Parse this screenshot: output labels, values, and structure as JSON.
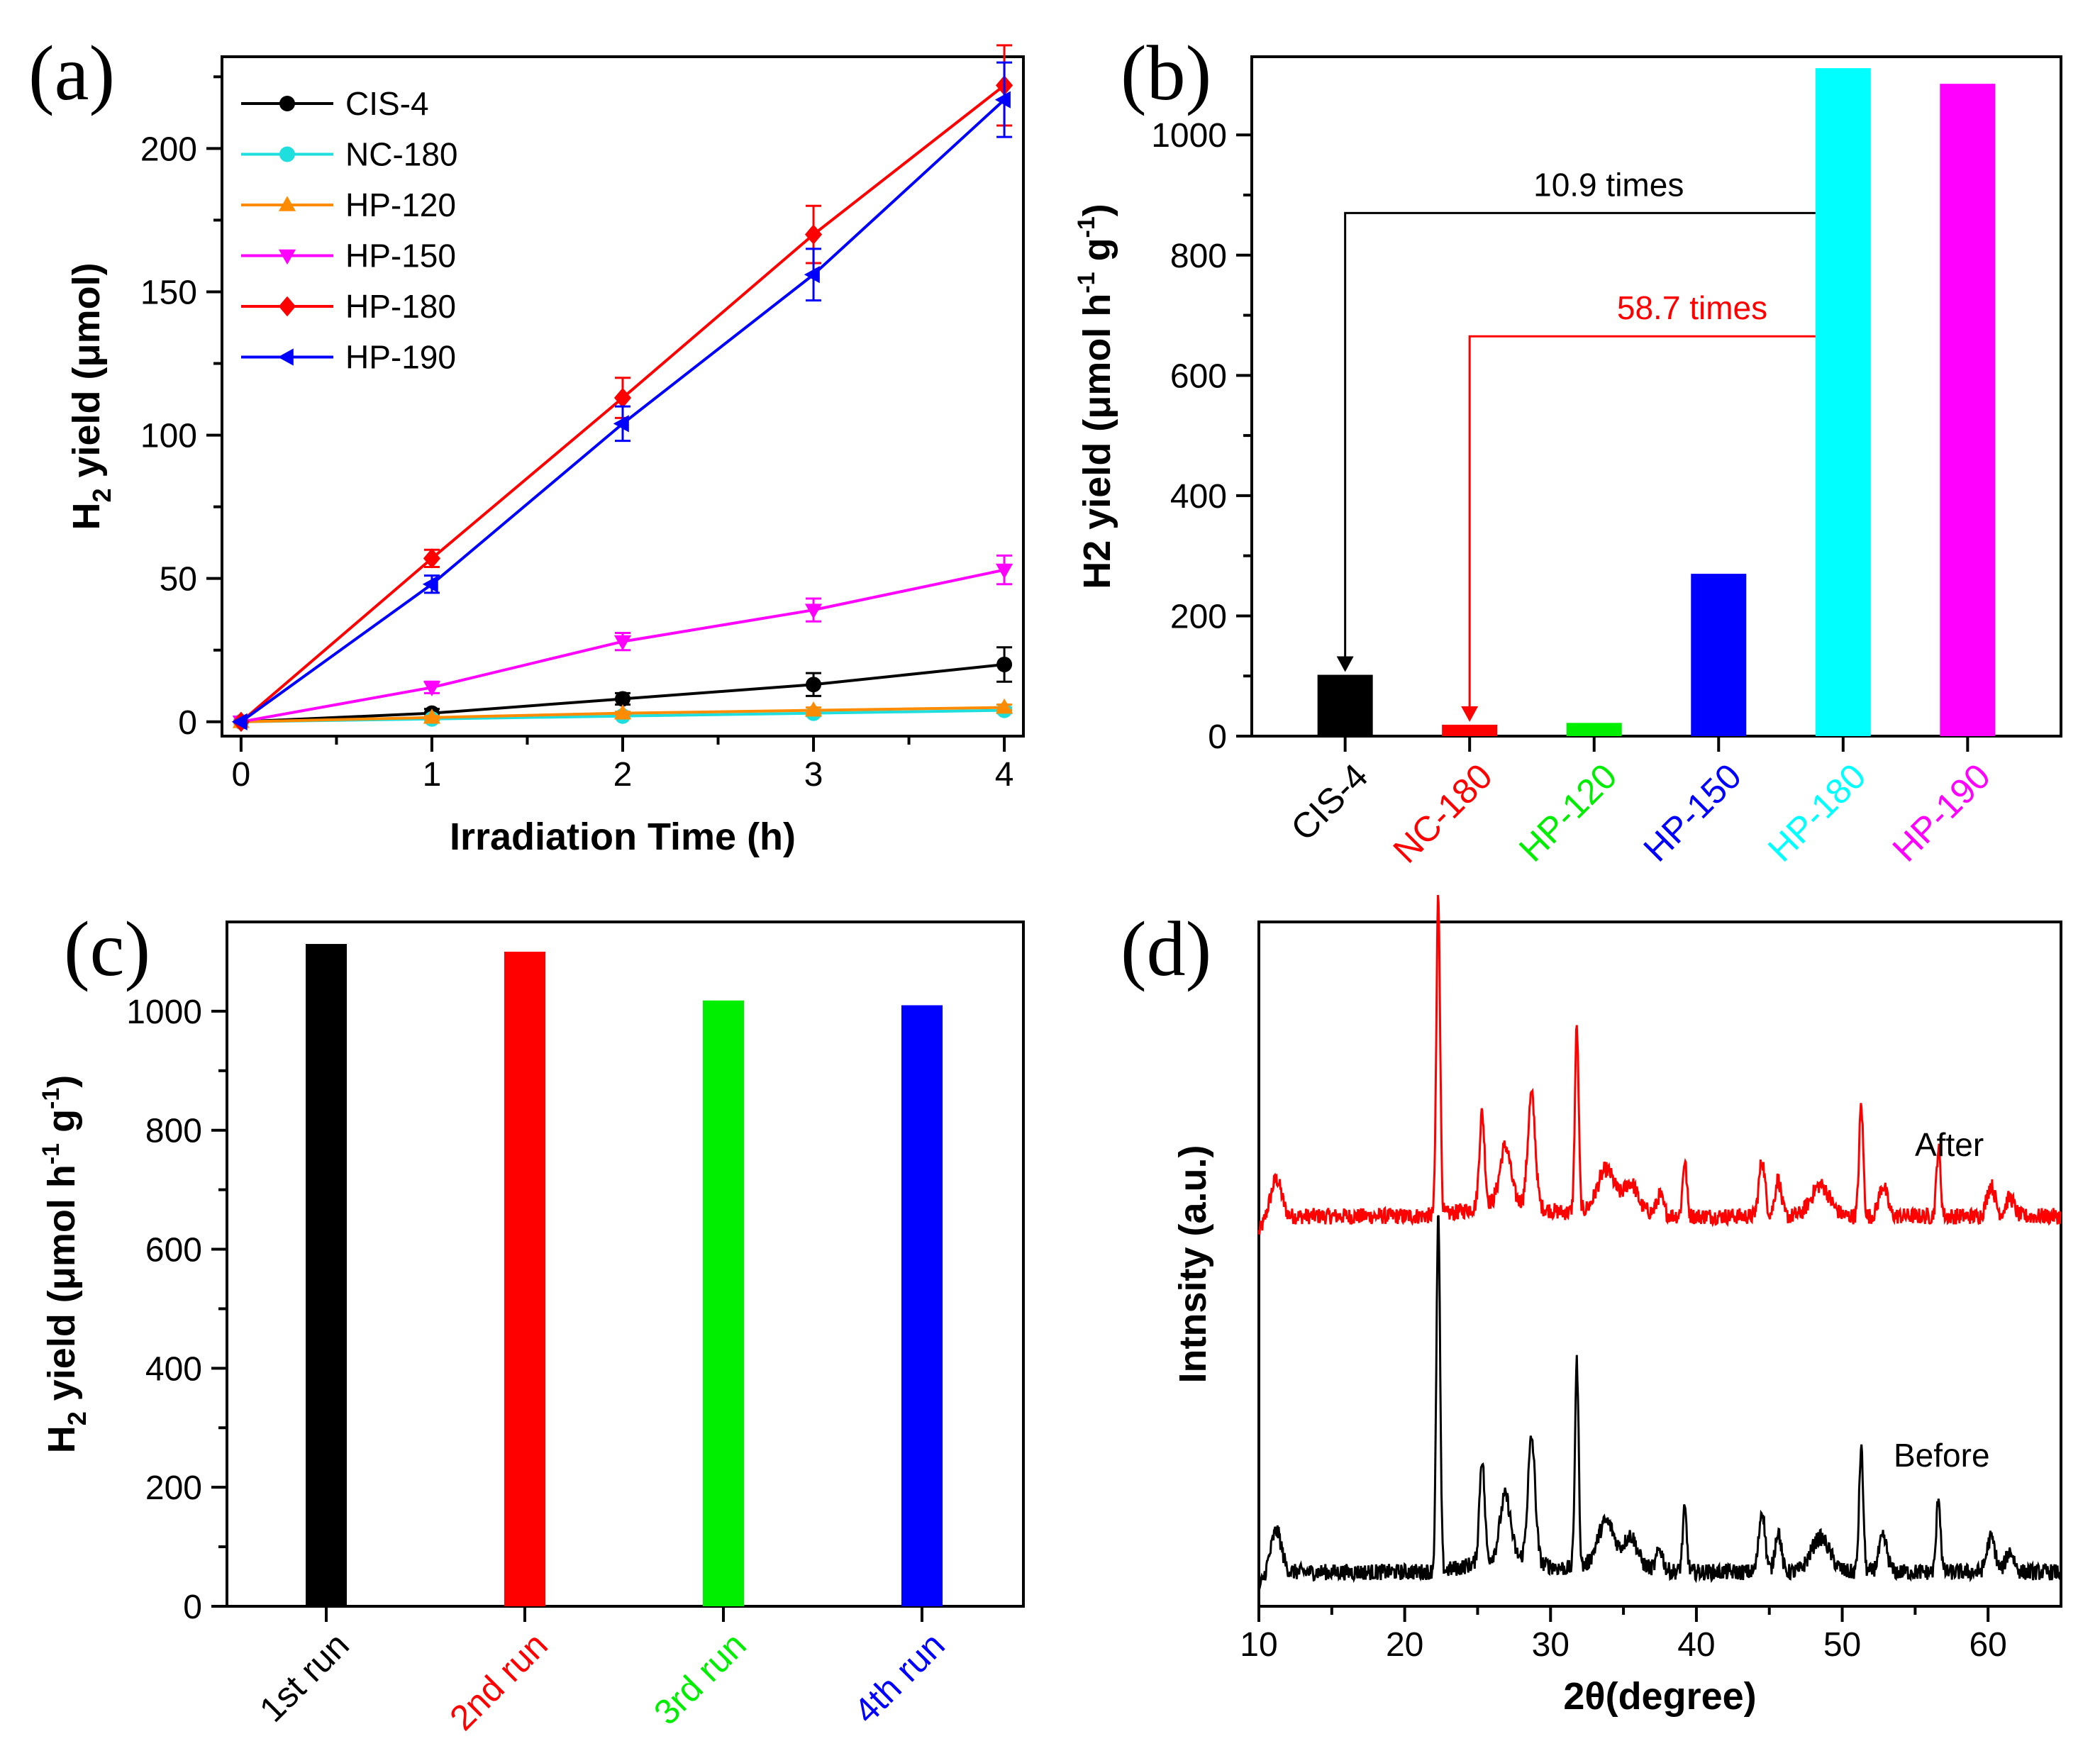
{
  "colors": {
    "black": "#000000",
    "red": "#ff0000",
    "green": "#00ee00",
    "blue": "#0000ff",
    "cyan": "#00ffff",
    "magenta": "#ff00ff",
    "orange": "#ff8c00",
    "teal": "#1fdede",
    "violet": "#ff00ff",
    "xrd_after": "#ff0000",
    "xrd_before": "#000000"
  },
  "chart_data": [
    {
      "panel": "(a)",
      "type": "line",
      "title": "",
      "xlabel": "Irradiation Time (h)",
      "ylabel": "H2 yield (μmol)",
      "ylabel_main": "H",
      "ylabel_sub": "2",
      "ylabel_rest": " yield (μmol)",
      "xlim": [
        -0.1,
        4.1
      ],
      "ylim": [
        -5,
        232
      ],
      "xticks": [
        0,
        1,
        2,
        3,
        4
      ],
      "yticks": [
        0,
        50,
        100,
        150,
        200
      ],
      "x": [
        0,
        1,
        2,
        3,
        4
      ],
      "legend_position": "top-left",
      "series": [
        {
          "name": "CIS-4",
          "color": "#000000",
          "marker": "circle",
          "values": [
            0,
            3,
            8,
            13,
            20
          ],
          "errors": [
            0,
            1.5,
            2,
            4,
            6
          ]
        },
        {
          "name": "NC-180",
          "color": "#1fdede",
          "marker": "circle",
          "values": [
            0,
            1,
            2,
            3,
            4
          ],
          "errors": [
            0,
            0.5,
            0.5,
            1,
            1
          ]
        },
        {
          "name": "HP-120",
          "color": "#ff8c00",
          "marker": "triangle-up",
          "values": [
            0,
            1.5,
            3,
            4,
            5
          ],
          "errors": [
            0,
            0.5,
            0.5,
            1,
            1
          ]
        },
        {
          "name": "HP-150",
          "color": "#ff00ff",
          "marker": "triangle-down",
          "values": [
            0,
            12,
            28,
            39,
            53
          ],
          "errors": [
            0,
            2,
            3,
            4,
            5
          ]
        },
        {
          "name": "HP-180",
          "color": "#ff0000",
          "marker": "diamond",
          "values": [
            0,
            57,
            113,
            170,
            222
          ],
          "errors": [
            0,
            3,
            7,
            10,
            14
          ]
        },
        {
          "name": "HP-190",
          "color": "#0000ff",
          "marker": "triangle-left",
          "values": [
            0,
            48,
            104,
            156,
            217
          ],
          "errors": [
            0,
            3,
            6,
            9,
            13
          ]
        }
      ]
    },
    {
      "panel": "(b)",
      "type": "bar",
      "title": "",
      "xlabel": "",
      "ylabel": "H2 yield (μmol h-1 g-1)",
      "ylabel_main": "H2 yield (μmol h",
      "ylabel_sup1": "-1",
      "ylabel_mid": " g",
      "ylabel_sup2": "-1",
      "ylabel_end": ")",
      "ylim": [
        0,
        1130
      ],
      "yticks": [
        0,
        200,
        400,
        600,
        800,
        1000
      ],
      "categories": [
        "CIS-4",
        "NC-180",
        "HP-120",
        "HP-150",
        "HP-180",
        "HP-190"
      ],
      "values": [
        102,
        19,
        22,
        270,
        1111,
        1085
      ],
      "bar_colors": [
        "#000000",
        "#ff0000",
        "#00ee00",
        "#0000ff",
        "#00ffff",
        "#ff00ff"
      ],
      "annotations": [
        {
          "text": "10.9 times",
          "color": "#000000",
          "from": "HP-180",
          "to": "CIS-4",
          "level": 870
        },
        {
          "text": "58.7 times",
          "color": "#ff0000",
          "from": "HP-180",
          "to": "NC-180",
          "level": 665
        }
      ]
    },
    {
      "panel": "(c)",
      "type": "bar",
      "title": "",
      "xlabel": "",
      "ylabel": "H2 yield (μmol h-1 g-1)",
      "ylabel_main": "H",
      "ylabel_sub": "2",
      "ylabel_rest1": " yield (μmol h",
      "ylabel_sup1": "-1",
      "ylabel_mid": " g",
      "ylabel_sup2": "-1",
      "ylabel_end": ")",
      "ylim": [
        0,
        1150
      ],
      "yticks": [
        0,
        200,
        400,
        600,
        800,
        1000
      ],
      "categories": [
        "1st run",
        "2nd run",
        "3rd run",
        "4th run"
      ],
      "values": [
        1113,
        1100,
        1018,
        1010
      ],
      "bar_colors": [
        "#000000",
        "#ff0000",
        "#00ee00",
        "#0000ff"
      ]
    },
    {
      "panel": "(d)",
      "type": "line",
      "title": "",
      "xlabel": "2θ(degree)",
      "ylabel": "Intnsity (a.u.)",
      "xlim": [
        10,
        65
      ],
      "xticks": [
        10,
        20,
        30,
        40,
        50,
        60
      ],
      "ylim": [
        0,
        100
      ],
      "y_ticks_shown": false,
      "peaks": [
        {
          "pos": 11.2,
          "width": 0.5,
          "height": 6
        },
        {
          "pos": 22.3,
          "width": 0.18,
          "height": 52
        },
        {
          "pos": 25.3,
          "width": 0.25,
          "height": 15
        },
        {
          "pos": 26.9,
          "width": 0.5,
          "height": 9
        },
        {
          "pos": 28.7,
          "width": 0.35,
          "height": 18
        },
        {
          "pos": 31.8,
          "width": 0.18,
          "height": 30
        },
        {
          "pos": 33.8,
          "width": 0.8,
          "height": 6
        },
        {
          "pos": 35.5,
          "width": 0.6,
          "height": 4
        },
        {
          "pos": 37.5,
          "width": 0.3,
          "height": 3
        },
        {
          "pos": 39.2,
          "width": 0.2,
          "height": 9
        },
        {
          "pos": 44.5,
          "width": 0.3,
          "height": 9
        },
        {
          "pos": 45.6,
          "width": 0.3,
          "height": 6
        },
        {
          "pos": 48.5,
          "width": 0.9,
          "height": 5
        },
        {
          "pos": 51.3,
          "width": 0.2,
          "height": 18
        },
        {
          "pos": 52.8,
          "width": 0.4,
          "height": 5
        },
        {
          "pos": 56.6,
          "width": 0.2,
          "height": 11
        },
        {
          "pos": 60.2,
          "width": 0.4,
          "height": 5
        },
        {
          "pos": 61.5,
          "width": 0.4,
          "height": 3
        }
      ],
      "series": [
        {
          "name": "After",
          "color": "#ff0000",
          "baseline": 57,
          "scale": 0.9
        },
        {
          "name": "Before",
          "color": "#000000",
          "baseline": 5,
          "scale": 1.0
        }
      ]
    }
  ]
}
